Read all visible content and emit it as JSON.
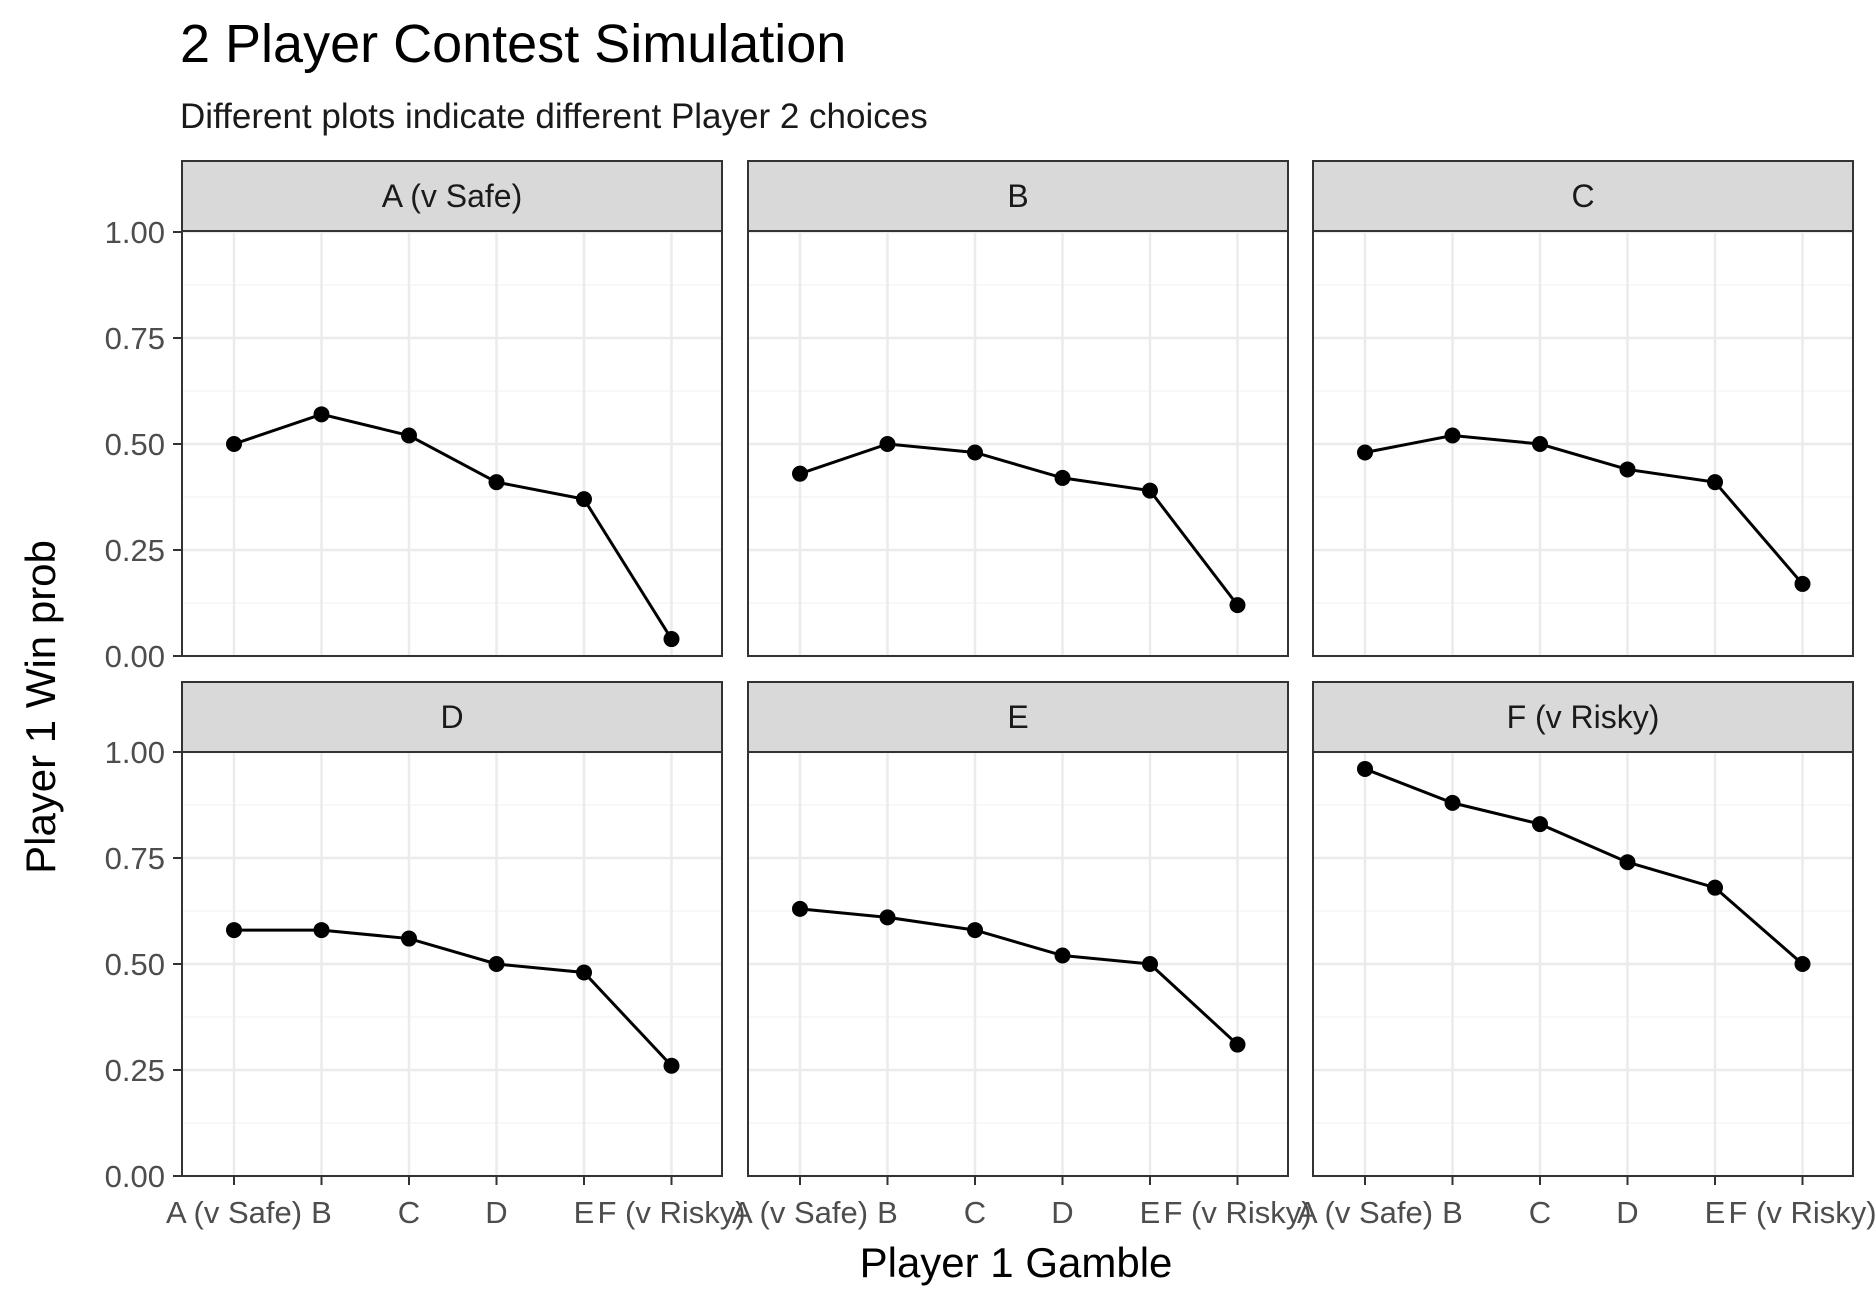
{
  "chart_data": {
    "type": "line",
    "title": "2 Player Contest Simulation",
    "subtitle": "Different plots indicate different Player 2 choices",
    "xlabel": "Player 1 Gamble",
    "ylabel": "Player 1 Win prob",
    "categories": [
      "A (v Safe)",
      "B",
      "C",
      "D",
      "E",
      "F (v Risky)"
    ],
    "ylim": [
      0,
      1
    ],
    "yticks": [
      "0.00",
      "0.25",
      "0.50",
      "0.75",
      "1.00"
    ],
    "grid": true,
    "legend": "none",
    "colors": {
      "line": "#000000",
      "strip_fill": "#d9d9d9",
      "grid_major": "#ebebeb",
      "grid_minor": "#f5f5f5",
      "panel_border": "#333333"
    },
    "panels": [
      {
        "label": "A (v Safe)",
        "values": [
          0.5,
          0.57,
          0.52,
          0.41,
          0.37,
          0.04
        ]
      },
      {
        "label": "B",
        "values": [
          0.43,
          0.5,
          0.48,
          0.42,
          0.39,
          0.12
        ]
      },
      {
        "label": "C",
        "values": [
          0.48,
          0.52,
          0.5,
          0.44,
          0.41,
          0.17
        ]
      },
      {
        "label": "D",
        "values": [
          0.58,
          0.58,
          0.56,
          0.5,
          0.48,
          0.26
        ]
      },
      {
        "label": "E",
        "values": [
          0.63,
          0.61,
          0.58,
          0.52,
          0.5,
          0.31
        ]
      },
      {
        "label": "F (v Risky)",
        "values": [
          0.96,
          0.88,
          0.83,
          0.74,
          0.68,
          0.5
        ]
      }
    ]
  }
}
